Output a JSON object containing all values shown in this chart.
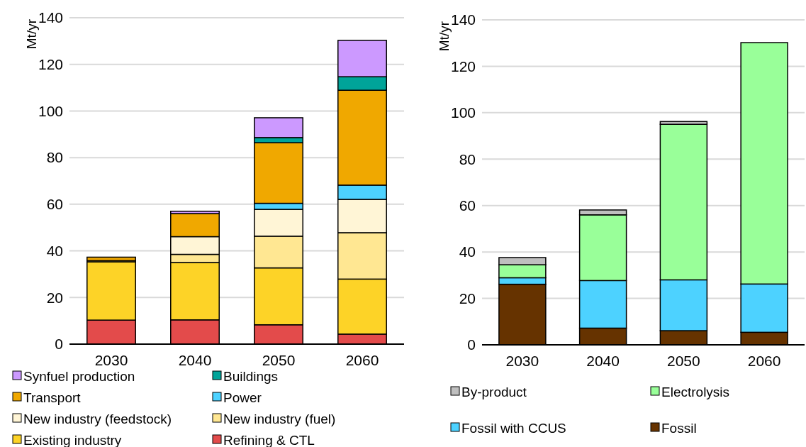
{
  "chart_data": [
    {
      "type": "bar",
      "stacked": true,
      "ylabel": "Mt/yr",
      "categories": [
        "2030",
        "2040",
        "2050",
        "2060"
      ],
      "ylim": [
        0,
        140
      ],
      "yticks": [
        0,
        20,
        40,
        60,
        80,
        100,
        120,
        140
      ],
      "grid": "y",
      "legend": "bottom",
      "series": [
        {
          "name": "Refining & CTL",
          "color": "#e34b4b",
          "values": [
            10.3,
            10.4,
            8.3,
            4.3
          ]
        },
        {
          "name": "Existing industry",
          "color": "#fdd327",
          "values": [
            25.0,
            24.6,
            24.4,
            23.6
          ]
        },
        {
          "name": "New industry (fuel)",
          "color": "#ffe792",
          "values": [
            0.5,
            3.5,
            13.6,
            19.9
          ]
        },
        {
          "name": "New industry (feedstock)",
          "color": "#fff5d6",
          "values": [
            0,
            7.6,
            11.5,
            14.3
          ]
        },
        {
          "name": "Power",
          "color": "#4dd2ff",
          "values": [
            0,
            null,
            2.6,
            6.1
          ]
        },
        {
          "name": "Transport",
          "color": "#f0a800",
          "values": [
            1.5,
            9.9,
            26.0,
            40.7
          ]
        },
        {
          "name": "Buildings",
          "color": "#00a499",
          "values": [
            0,
            null,
            2.2,
            5.8
          ]
        },
        {
          "name": "Synfuel production",
          "color": "#cc99ff",
          "values": [
            0,
            1.0,
            8.5,
            15.6
          ]
        }
      ]
    },
    {
      "type": "bar",
      "stacked": true,
      "ylabel": "Mt/yr",
      "categories": [
        "2030",
        "2040",
        "2050",
        "2060"
      ],
      "ylim": [
        0,
        140
      ],
      "yticks": [
        0,
        20,
        40,
        60,
        80,
        100,
        120,
        140
      ],
      "grid": "y",
      "legend": "bottom",
      "series": [
        {
          "name": "Fossil",
          "color": "#663300",
          "values": [
            26.1,
            7.2,
            6.1,
            5.4
          ]
        },
        {
          "name": "Fossil with CCUS",
          "color": "#4dd2ff",
          "values": [
            2.8,
            20.5,
            21.9,
            20.8
          ]
        },
        {
          "name": "Electrolysis",
          "color": "#99ff99",
          "values": [
            5.6,
            28.3,
            67.0,
            104.0
          ]
        },
        {
          "name": "By-product",
          "color": "#bfbfbf",
          "values": [
            3.1,
            2.1,
            1.2,
            0
          ]
        }
      ]
    }
  ]
}
